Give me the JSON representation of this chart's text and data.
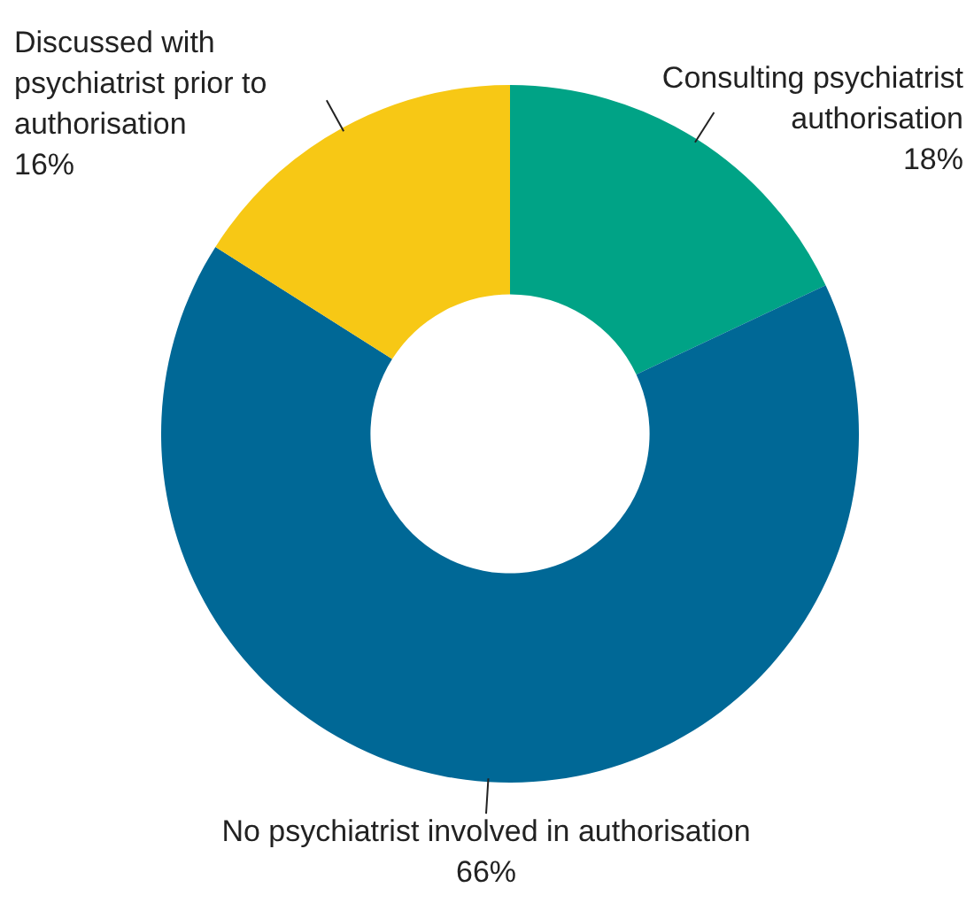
{
  "chart_data": {
    "type": "donut",
    "categories": [
      "Consulting psychiatrist authorisation",
      "No psychiatrist involved in authorisation",
      "Discussed with psychiatrist prior to authorisation"
    ],
    "values": [
      18,
      66,
      16
    ],
    "colors": [
      "#00a386",
      "#006896",
      "#f7c815"
    ],
    "value_labels": [
      "18%",
      "66%",
      "16%"
    ],
    "legend": false
  }
}
